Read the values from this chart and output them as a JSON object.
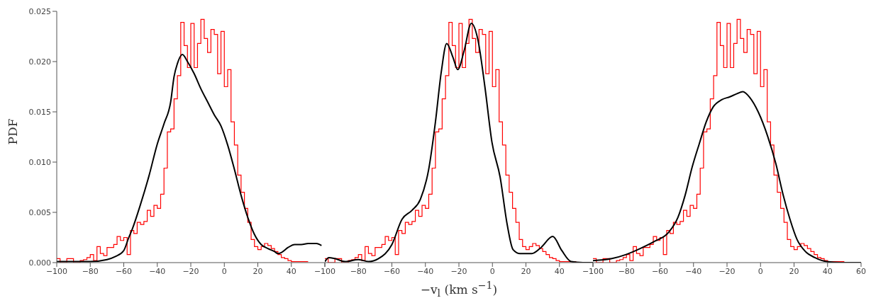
{
  "chart_data": [
    {
      "type": "histogram",
      "ylabel": "PDF",
      "color": "#ff0000",
      "bins": [
        -100,
        -98,
        -96,
        -94,
        -92,
        -90,
        -88,
        -86,
        -84,
        -82,
        -80,
        -78,
        -76,
        -74,
        -72,
        -70,
        -68,
        -66,
        -64,
        -62,
        -60,
        -58,
        -56,
        -54,
        -52,
        -50,
        -48,
        -46,
        -44,
        -42,
        -40,
        -38,
        -36,
        -34,
        -32,
        -30,
        -28,
        -26,
        -24,
        -22,
        -20,
        -18,
        -16,
        -14,
        -12,
        -10,
        -8,
        -6,
        -4,
        -2,
        0,
        2,
        4,
        6,
        8,
        10,
        12,
        14,
        16,
        18,
        20,
        22,
        24,
        26,
        28,
        30,
        32,
        34,
        36,
        38,
        40,
        42,
        44,
        46,
        48,
        50
      ],
      "values": [
        0.0004,
        0,
        0,
        0.0004,
        0.0004,
        0,
        0,
        0.0002,
        0.0003,
        0.0005,
        0.0008,
        0.0002,
        0.0016,
        0.0009,
        0.0007,
        0.0015,
        0.0015,
        0.0018,
        0.0026,
        0.0022,
        0.0025,
        0.0008,
        0.0032,
        0.0029,
        0.004,
        0.0038,
        0.0041,
        0.0052,
        0.0046,
        0.0057,
        0.0054,
        0.0068,
        0.0094,
        0.013,
        0.0133,
        0.0163,
        0.0186,
        0.0239,
        0.0216,
        0.0194,
        0.0238,
        0.0194,
        0.0218,
        0.0242,
        0.0223,
        0.0209,
        0.0232,
        0.0227,
        0.0188,
        0.023,
        0.0175,
        0.0192,
        0.014,
        0.0117,
        0.0087,
        0.007,
        0.0054,
        0.004,
        0.0023,
        0.0016,
        0.0013,
        0.0016,
        0.0019,
        0.0017,
        0.0014,
        0.0011,
        0.0008,
        0.0005,
        0.0004,
        0.0002,
        0.0001,
        0.0001,
        0.0001,
        0.0001,
        0.0001
      ],
      "series": [
        {
          "type": "line",
          "color": "#000000",
          "x": [
            -100,
            -80,
            -70,
            -65,
            -60,
            -57,
            -55,
            -50,
            -45,
            -40,
            -36,
            -32,
            -30,
            -28,
            -25,
            -22,
            -18,
            -14,
            -10,
            -6,
            -2,
            2,
            6,
            10,
            14,
            18,
            22,
            26,
            30,
            32,
            34,
            38,
            42,
            46,
            50,
            55,
            58
          ],
          "values": [
            0.0001,
            0.0001,
            0.0003,
            0.0006,
            0.0012,
            0.0025,
            0.0033,
            0.0058,
            0.0086,
            0.0118,
            0.0138,
            0.016,
            0.0185,
            0.0198,
            0.0207,
            0.02,
            0.0188,
            0.0173,
            0.016,
            0.0147,
            0.0136,
            0.0117,
            0.0093,
            0.0067,
            0.0045,
            0.0028,
            0.0018,
            0.0014,
            0.0011,
            0.0009,
            0.001,
            0.0015,
            0.0018,
            0.0018,
            0.0019,
            0.0019,
            0.0017
          ]
        }
      ],
      "xlim": [
        -100,
        60
      ],
      "ylim": [
        0,
        0.025
      ],
      "xticks": [
        {
          "value": -100,
          "label": "−100"
        },
        {
          "value": -80,
          "label": "−80"
        },
        {
          "value": -60,
          "label": "−60"
        },
        {
          "value": -40,
          "label": "−40"
        },
        {
          "value": -20,
          "label": "−20"
        },
        0,
        20,
        40,
        {
          "value": 60,
          "label": null
        }
      ],
      "yticks": [
        {
          "value": 0,
          "label": "0.000"
        },
        0.005,
        {
          "value": 0.01,
          "label": "0.010"
        },
        0.015,
        {
          "value": 0.02,
          "label": "0.020"
        },
        0.025
      ]
    },
    {
      "type": "histogram",
      "xlabel": "−v$_{l}$ (km s$^{−1}$)",
      "color": "#ff0000",
      "bins": [
        -100,
        -98,
        -96,
        -94,
        -92,
        -90,
        -88,
        -86,
        -84,
        -82,
        -80,
        -78,
        -76,
        -74,
        -72,
        -70,
        -68,
        -66,
        -64,
        -62,
        -60,
        -58,
        -56,
        -54,
        -52,
        -50,
        -48,
        -46,
        -44,
        -42,
        -40,
        -38,
        -36,
        -34,
        -32,
        -30,
        -28,
        -26,
        -24,
        -22,
        -20,
        -18,
        -16,
        -14,
        -12,
        -10,
        -8,
        -6,
        -4,
        -2,
        0,
        2,
        4,
        6,
        8,
        10,
        12,
        14,
        16,
        18,
        20,
        22,
        24,
        26,
        28,
        30,
        32,
        34,
        36,
        38,
        40,
        42,
        44,
        46,
        48,
        50
      ],
      "values": [
        0.0004,
        0,
        0,
        0.0004,
        0.0004,
        0,
        0,
        0.0002,
        0.0003,
        0.0005,
        0.0008,
        0.0002,
        0.0016,
        0.0009,
        0.0007,
        0.0015,
        0.0015,
        0.0018,
        0.0026,
        0.0022,
        0.0025,
        0.0008,
        0.0032,
        0.0029,
        0.004,
        0.0038,
        0.0041,
        0.0052,
        0.0046,
        0.0057,
        0.0054,
        0.0068,
        0.0094,
        0.013,
        0.0133,
        0.0163,
        0.0186,
        0.0239,
        0.0216,
        0.0194,
        0.0238,
        0.0194,
        0.0218,
        0.0242,
        0.0223,
        0.0209,
        0.0232,
        0.0227,
        0.0188,
        0.023,
        0.0175,
        0.0192,
        0.014,
        0.0117,
        0.0087,
        0.007,
        0.0054,
        0.004,
        0.0023,
        0.0016,
        0.0013,
        0.0016,
        0.0019,
        0.0017,
        0.0014,
        0.0011,
        0.0008,
        0.0005,
        0.0004,
        0.0002,
        0.0001,
        0.0001,
        0.0001,
        0.0001,
        0.0001
      ],
      "series": [
        {
          "type": "line",
          "color": "#000000",
          "x": [
            -100,
            -97.6,
            -94,
            -88,
            -80,
            -74,
            -68,
            -60,
            -54,
            -48,
            -43,
            -38,
            -34,
            -30.5,
            -27.3,
            -23.5,
            -20.7,
            -17,
            -12.6,
            -8.7,
            -4.5,
            -0.3,
            4.6,
            8.8,
            12.3,
            16.5,
            23.5,
            29,
            36,
            41.4,
            47,
            54,
            60
          ],
          "values": [
            0.0001,
            0.0005,
            0.0004,
            0.0001,
            0.0003,
            0.0001,
            0.0004,
            0.0018,
            0.0043,
            0.0052,
            0.0063,
            0.0093,
            0.014,
            0.019,
            0.0218,
            0.0204,
            0.0192,
            0.021,
            0.0238,
            0.0222,
            0.0175,
            0.012,
            0.0085,
            0.0038,
            0.0013,
            0.0009,
            0.0009,
            0.0015,
            0.0026,
            0.0012,
            0.0001,
            0,
            0
          ]
        }
      ],
      "xlim": [
        -100,
        60
      ],
      "ylim": [
        0,
        0.025
      ],
      "tick_labels": "x",
      "xticks": [
        {
          "value": -100,
          "label": "−100"
        },
        {
          "value": -80,
          "label": "−80"
        },
        {
          "value": -60,
          "label": "−60"
        },
        {
          "value": -40,
          "label": "−40"
        },
        {
          "value": -20,
          "label": "−20"
        },
        0,
        20,
        40,
        {
          "value": 60,
          "label": null
        }
      ],
      "yticks": [
        0,
        0.005,
        0.01,
        0.015,
        0.02,
        0.025
      ]
    },
    {
      "type": "histogram",
      "color": "#ff0000",
      "bins": [
        -100,
        -98,
        -96,
        -94,
        -92,
        -90,
        -88,
        -86,
        -84,
        -82,
        -80,
        -78,
        -76,
        -74,
        -72,
        -70,
        -68,
        -66,
        -64,
        -62,
        -60,
        -58,
        -56,
        -54,
        -52,
        -50,
        -48,
        -46,
        -44,
        -42,
        -40,
        -38,
        -36,
        -34,
        -32,
        -30,
        -28,
        -26,
        -24,
        -22,
        -20,
        -18,
        -16,
        -14,
        -12,
        -10,
        -8,
        -6,
        -4,
        -2,
        0,
        2,
        4,
        6,
        8,
        10,
        12,
        14,
        16,
        18,
        20,
        22,
        24,
        26,
        28,
        30,
        32,
        34,
        36,
        38,
        40,
        42,
        44,
        46,
        48,
        50
      ],
      "values": [
        0.0004,
        0,
        0,
        0.0004,
        0.0004,
        0,
        0,
        0.0002,
        0.0003,
        0.0005,
        0.0008,
        0.0002,
        0.0016,
        0.0009,
        0.0007,
        0.0015,
        0.0015,
        0.0018,
        0.0026,
        0.0022,
        0.0025,
        0.0008,
        0.0032,
        0.0029,
        0.004,
        0.0038,
        0.0041,
        0.0052,
        0.0046,
        0.0057,
        0.0054,
        0.0068,
        0.0094,
        0.013,
        0.0133,
        0.0163,
        0.0186,
        0.0239,
        0.0216,
        0.0194,
        0.0238,
        0.0194,
        0.0218,
        0.0242,
        0.0223,
        0.0209,
        0.0232,
        0.0227,
        0.0188,
        0.023,
        0.0175,
        0.0192,
        0.014,
        0.0117,
        0.0087,
        0.007,
        0.0054,
        0.004,
        0.0023,
        0.0016,
        0.0013,
        0.0016,
        0.0019,
        0.0017,
        0.0014,
        0.0011,
        0.0008,
        0.0005,
        0.0004,
        0.0002,
        0.0001,
        0.0001,
        0.0001,
        0.0001,
        0.0001
      ],
      "series": [
        {
          "type": "line",
          "color": "#000000",
          "x": [
            -100,
            -88.7,
            -80.3,
            -71.8,
            -63.4,
            -54.9,
            -49.3,
            -45,
            -40.8,
            -36.6,
            -32.4,
            -28.2,
            -23.2,
            -18.3,
            -14.1,
            -10.6,
            -6.3,
            -1.4,
            4.2,
            9.2,
            13.4,
            17.6,
            21.8,
            26.8,
            32.4,
            39.4,
            47.9,
            60
          ],
          "values": [
            0.0002,
            0.0004,
            0.0008,
            0.0014,
            0.0021,
            0.003,
            0.0045,
            0.0067,
            0.0095,
            0.0118,
            0.014,
            0.0155,
            0.0162,
            0.0165,
            0.0168,
            0.017,
            0.0164,
            0.015,
            0.0126,
            0.0098,
            0.0068,
            0.0043,
            0.0023,
            0.0011,
            0.0005,
            0.0001,
            0,
            0
          ]
        }
      ],
      "xlim": [
        -100,
        60
      ],
      "ylim": [
        0,
        0.025
      ],
      "tick_labels": "x",
      "xticks": [
        {
          "value": -100,
          "label": "−100"
        },
        {
          "value": -80,
          "label": "−80"
        },
        {
          "value": -60,
          "label": "−60"
        },
        {
          "value": -40,
          "label": "−40"
        },
        {
          "value": -20,
          "label": "−20"
        },
        0,
        20,
        40,
        60
      ],
      "yticks": [
        0,
        0.005,
        0.01,
        0.015,
        0.02,
        0.025
      ]
    }
  ]
}
